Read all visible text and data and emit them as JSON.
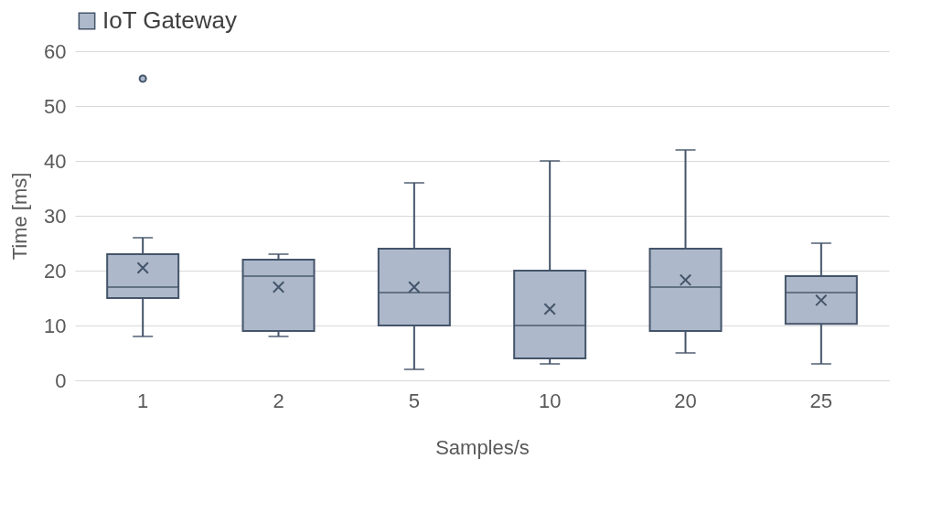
{
  "chart_data": {
    "type": "box",
    "xlabel": "Samples/s",
    "ylabel": "Time [ms]",
    "categories": [
      "1",
      "2",
      "5",
      "10",
      "20",
      "25"
    ],
    "series": [
      {
        "name": "IoT Gateway",
        "color": "#adb9ca",
        "boxes": [
          {
            "low": 8,
            "q1": 15,
            "median": 17,
            "q3": 23,
            "high": 26,
            "mean": 20.5,
            "outliers": [
              55
            ]
          },
          {
            "low": 8,
            "q1": 9,
            "median": 19,
            "q3": 22,
            "high": 23,
            "mean": 17
          },
          {
            "low": 2,
            "q1": 10,
            "median": 16,
            "q3": 24,
            "high": 36,
            "mean": 17
          },
          {
            "low": 3,
            "q1": 4,
            "median": 10,
            "q3": 20,
            "high": 40,
            "mean": 13
          },
          {
            "low": 5,
            "q1": 9,
            "median": 17,
            "q3": 24,
            "high": 42,
            "mean": 18.3
          },
          {
            "low": 3,
            "q1": 10.3,
            "median": 16,
            "q3": 19,
            "high": 25,
            "mean": 14.6
          }
        ]
      }
    ],
    "ylim": [
      0,
      60
    ],
    "yticks": [
      0,
      10,
      20,
      30,
      40,
      50,
      60
    ],
    "grid": "y",
    "legend": "top",
    "marker": "cross"
  }
}
